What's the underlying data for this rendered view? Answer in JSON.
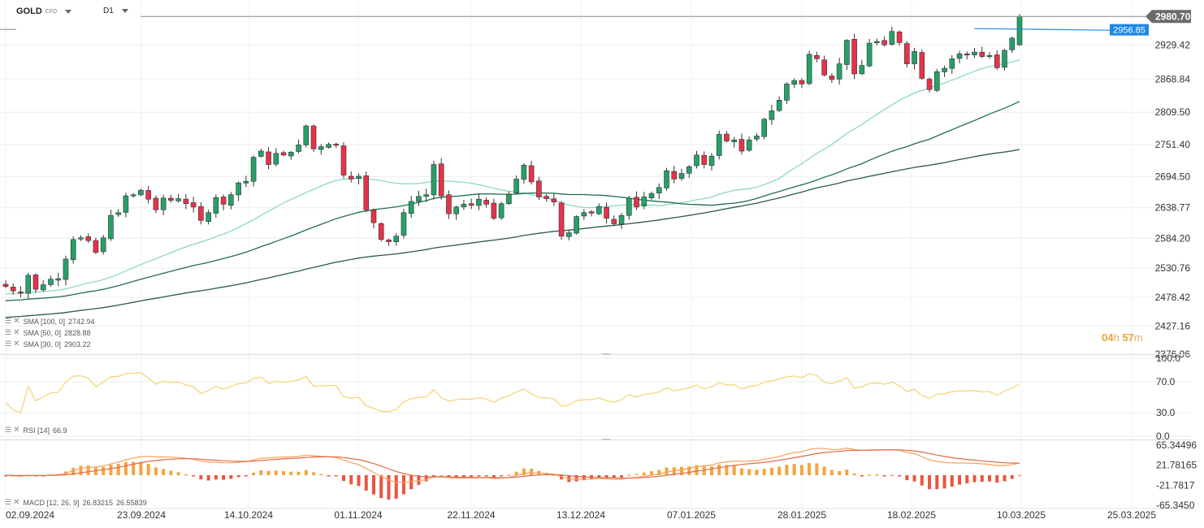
{
  "header": {
    "symbol": "GOLD",
    "symbol_tag": "CFD",
    "timeframe": "D1"
  },
  "price_labels": {
    "last": "2980.70",
    "line": "2956.85"
  },
  "colors": {
    "up": "#26a069",
    "down": "#e5334b",
    "sma30": "#8dd8c4",
    "sma50": "#1f6e4e",
    "sma100": "#2a5c44",
    "rsi": "#f5d57a",
    "macd": "#f7a15a",
    "signal": "#e06c4c",
    "hist_pos": "#f5a33f",
    "hist_neg": "#e8553e",
    "last_badge": "#6b6b6b",
    "line_badge": "#1e88e5"
  },
  "indicators": {
    "sma100": {
      "label": "SMA [100, 0]",
      "value": "2742.94"
    },
    "sma50": {
      "label": "SMA [50, 0]",
      "value": "2828.88"
    },
    "sma30": {
      "label": "SMA [30, 0]",
      "value": "2903.22"
    },
    "rsi": {
      "label": "RSI [14]",
      "value": "66.9"
    },
    "macd": {
      "label": "MACD [12, 26, 9]",
      "value1": "26.83215",
      "value2": "26.55839"
    }
  },
  "timer": {
    "h": "04",
    "m": "57",
    "h_unit": "h",
    "m_unit": "m"
  },
  "chart_data": [
    {
      "type": "candlestick",
      "title": "",
      "xlabel": "",
      "ylabel": "",
      "x_ticks": [
        "02.09.2024",
        "23.09.2024",
        "14.10.2024",
        "01.11.2024",
        "22.11.2024",
        "13.12.2024",
        "07.01.2025",
        "28.01.2025",
        "18.02.2025",
        "10.03.2025",
        "25.03.2025"
      ],
      "y_ticks": [
        "2980.70",
        "2929.42",
        "2868.84",
        "2809.50",
        "2751.40",
        "2694.50",
        "2638.77",
        "2584.20",
        "2530.76",
        "2478.42",
        "2427.16",
        "2376.96"
      ],
      "ylim": [
        2376.96,
        2998.5
      ],
      "grid": true,
      "close_start": 2502,
      "closes": [
        2498,
        2490,
        2486,
        2518,
        2493,
        2501,
        2511,
        2512,
        2547,
        2582,
        2585,
        2580,
        2559,
        2585,
        2625,
        2630,
        2660,
        2662,
        2670,
        2654,
        2635,
        2656,
        2652,
        2655,
        2646,
        2640,
        2616,
        2630,
        2657,
        2645,
        2662,
        2683,
        2686,
        2729,
        2740,
        2716,
        2736,
        2733,
        2738,
        2751,
        2785,
        2744,
        2748,
        2752,
        2751,
        2697,
        2690,
        2695,
        2635,
        2612,
        2582,
        2578,
        2588,
        2630,
        2650,
        2659,
        2662,
        2716,
        2660,
        2628,
        2640,
        2645,
        2643,
        2654,
        2645,
        2620,
        2646,
        2663,
        2690,
        2715,
        2685,
        2658,
        2655,
        2649,
        2588,
        2594,
        2623,
        2630,
        2629,
        2641,
        2620,
        2610,
        2625,
        2656,
        2640,
        2658,
        2664,
        2675,
        2705,
        2690,
        2700,
        2712,
        2733,
        2716,
        2731,
        2770,
        2758,
        2760,
        2740,
        2760,
        2767,
        2797,
        2812,
        2831,
        2860,
        2866,
        2860,
        2913,
        2905,
        2876,
        2868,
        2896,
        2938,
        2878,
        2893,
        2933,
        2936,
        2930,
        2954,
        2934,
        2896,
        2918,
        2870,
        2850,
        2882,
        2888,
        2905,
        2914,
        2913,
        2917,
        2909,
        2911,
        2889,
        2920,
        2942,
        2980.7
      ],
      "sma30_end": 2903.22,
      "sma50_end": 2828.88,
      "sma100_end": 2742.94
    },
    {
      "type": "line",
      "title": "RSI [14]",
      "y_ticks": [
        "100.0",
        "70.0",
        "30.0",
        "0.0"
      ],
      "ylim": [
        0,
        100
      ],
      "last": 66.9
    },
    {
      "type": "bar",
      "title": "MACD [12, 26, 9]",
      "y_ticks": [
        "65.34496",
        "21.78165",
        "-21.7817",
        "-65.3450"
      ],
      "ylim": [
        -65.345,
        65.345
      ],
      "macd_last": 26.83215,
      "signal_last": 26.55839
    }
  ]
}
